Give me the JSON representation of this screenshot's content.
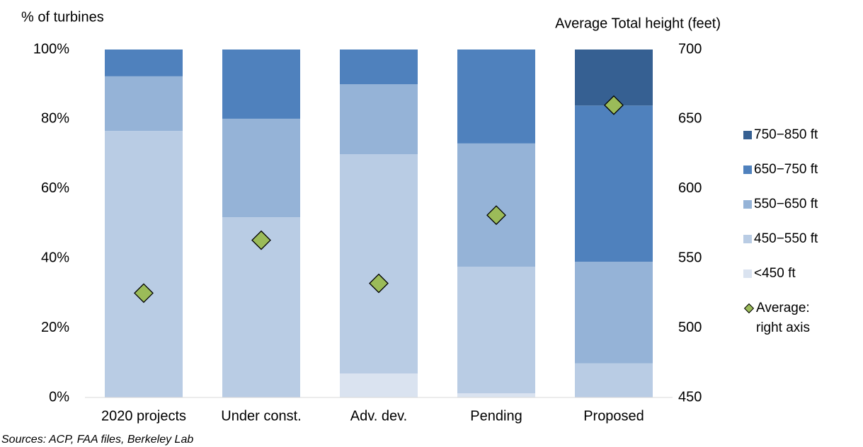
{
  "chart_data": {
    "type": "bar",
    "stacked": true,
    "y_axis_title": "% of turbines",
    "y2_axis_title": "Average Total height (feet)",
    "source": "Sources: ACP, FAA files, Berkeley Lab",
    "categories": [
      "2020 projects",
      "Under const.",
      "Adv. dev.",
      "Pending",
      "Proposed"
    ],
    "series": [
      {
        "name": "<450 ft",
        "color": "#dae3f0",
        "values": [
          0,
          0,
          6.9,
          1.2,
          0
        ]
      },
      {
        "name": "450−550 ft",
        "color": "#b9cce4",
        "values": [
          76.6,
          51.8,
          63,
          36.4,
          9.8
        ]
      },
      {
        "name": "550−650 ft",
        "color": "#95b3d7",
        "values": [
          15.7,
          28.3,
          20.1,
          35.4,
          29.2
        ]
      },
      {
        "name": "650−750 ft",
        "color": "#4f81bd",
        "values": [
          7.7,
          19.9,
          10,
          27,
          44.9
        ]
      },
      {
        "name": "750−850 ft",
        "color": "#366092",
        "values": [
          0,
          0,
          0,
          0,
          16.1
        ]
      },
      {
        "name": "Average: right axis",
        "type": "scatter",
        "marker": "diamond",
        "axis": "y2",
        "color": "#9bbb59",
        "values": [
          525,
          563,
          532,
          581,
          660
        ]
      }
    ],
    "ylim": [
      0,
      100
    ],
    "yticks": [
      {
        "value": 0,
        "label": "0%"
      },
      {
        "value": 20,
        "label": "20%"
      },
      {
        "value": 40,
        "label": "40%"
      },
      {
        "value": 60,
        "label": "60%"
      },
      {
        "value": 80,
        "label": "80%"
      },
      {
        "value": 100,
        "label": "100%"
      }
    ],
    "y2lim": [
      450,
      700
    ],
    "y2ticks": [
      450,
      500,
      550,
      600,
      650,
      700
    ],
    "grid": false,
    "legend": "right"
  }
}
